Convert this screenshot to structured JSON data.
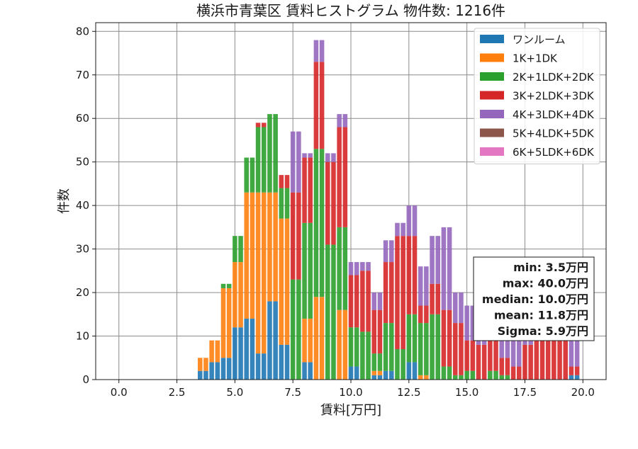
{
  "chart_data": {
    "type": "bar",
    "stacked": true,
    "title": "横浜市青葉区 賃料ヒストグラム  物件数: 1216件",
    "xlabel": "賃料[万円]",
    "ylabel": "件数",
    "xlim": [
      -1.0,
      21.0
    ],
    "ylim": [
      0,
      82
    ],
    "xticks": [
      0.0,
      2.5,
      5.0,
      7.5,
      10.0,
      12.5,
      15.0,
      17.5,
      20.0
    ],
    "xtick_labels": [
      "0.0",
      "2.5",
      "5.0",
      "7.5",
      "10.0",
      "12.5",
      "15.0",
      "17.5",
      "20.0"
    ],
    "yticks": [
      0,
      10,
      20,
      30,
      40,
      50,
      60,
      70,
      80
    ],
    "ytick_labels": [
      "0",
      "10",
      "20",
      "30",
      "40",
      "50",
      "60",
      "70",
      "80"
    ],
    "grid": true,
    "legend_position": "top-right",
    "bin_width": 0.25,
    "x": [
      3.5,
      3.75,
      4.0,
      4.25,
      4.5,
      4.75,
      5.0,
      5.25,
      5.5,
      5.75,
      6.0,
      6.25,
      6.5,
      6.75,
      7.0,
      7.25,
      7.5,
      7.75,
      8.0,
      8.25,
      8.5,
      8.75,
      9.0,
      9.25,
      9.5,
      9.75,
      10.0,
      10.25,
      10.5,
      10.75,
      11.0,
      11.25,
      11.5,
      11.75,
      12.0,
      12.25,
      12.5,
      12.75,
      13.0,
      13.25,
      13.5,
      13.75,
      14.0,
      14.25,
      14.5,
      14.75,
      15.0,
      15.25,
      15.5,
      15.75,
      16.0,
      16.25,
      16.5,
      16.75,
      17.0,
      17.25,
      17.5,
      17.75,
      18.0,
      18.25,
      18.5,
      18.75,
      19.0,
      19.25,
      19.5,
      19.75
    ],
    "series": [
      {
        "name": "ワンルーム",
        "color": "#1f77b4",
        "values": [
          2,
          2,
          4,
          4,
          5,
          5,
          12,
          12,
          14,
          14,
          6,
          6,
          18,
          18,
          8,
          8,
          0,
          0,
          4,
          4,
          0,
          0,
          0,
          0,
          0,
          0,
          3,
          3,
          0,
          0,
          1,
          1,
          2,
          2,
          0,
          0,
          4,
          4,
          0,
          0,
          0,
          0,
          0,
          0,
          0,
          0,
          0,
          0,
          0,
          0,
          0,
          0,
          0,
          0,
          0,
          0,
          0,
          0,
          0,
          0,
          0,
          0,
          0,
          0,
          1,
          1
        ]
      },
      {
        "name": "1K+1DK",
        "color": "#ff7f0e",
        "values": [
          3,
          3,
          5,
          5,
          16,
          16,
          15,
          15,
          29,
          29,
          37,
          37,
          25,
          25,
          29,
          29,
          0,
          0,
          10,
          10,
          19,
          19,
          0,
          0,
          16,
          16,
          0,
          0,
          0,
          0,
          1,
          1,
          0,
          0,
          0,
          0,
          0,
          0,
          1,
          1,
          0,
          0,
          0,
          0,
          0,
          0,
          0,
          0,
          0,
          0,
          0,
          0,
          0,
          0,
          0,
          0,
          0,
          0,
          0,
          0,
          0,
          0,
          0,
          0,
          0,
          0
        ]
      },
      {
        "name": "2K+1LDK+2DK",
        "color": "#2ca02c",
        "values": [
          0,
          0,
          0,
          0,
          1,
          1,
          6,
          6,
          8,
          8,
          15,
          15,
          18,
          18,
          7,
          7,
          23,
          23,
          22,
          22,
          34,
          34,
          31,
          31,
          19,
          19,
          9,
          9,
          11,
          11,
          4,
          4,
          11,
          11,
          7,
          7,
          11,
          11,
          12,
          12,
          15,
          15,
          3,
          3,
          1,
          1,
          2,
          2,
          0,
          0,
          2,
          2,
          1,
          1,
          0,
          0,
          0,
          0,
          0,
          0,
          0,
          0,
          0,
          0,
          0,
          0
        ]
      },
      {
        "name": "3K+2LDK+3DK",
        "color": "#d62728",
        "values": [
          0,
          0,
          0,
          0,
          0,
          0,
          0,
          0,
          0,
          0,
          1,
          1,
          0,
          0,
          3,
          3,
          20,
          20,
          15,
          15,
          20,
          20,
          19,
          19,
          23,
          23,
          12,
          12,
          14,
          14,
          10,
          10,
          14,
          14,
          26,
          26,
          18,
          18,
          4,
          4,
          7,
          7,
          13,
          13,
          12,
          12,
          7,
          7,
          8,
          8,
          10,
          10,
          4,
          4,
          3,
          3,
          8,
          8,
          11,
          11,
          14,
          14,
          18,
          18,
          2,
          2
        ]
      },
      {
        "name": "4K+3LDK+4DK",
        "color": "#9467bd",
        "values": [
          0,
          0,
          0,
          0,
          0,
          0,
          0,
          0,
          0,
          0,
          0,
          0,
          0,
          0,
          0,
          0,
          14,
          14,
          1,
          1,
          5,
          5,
          2,
          2,
          3,
          3,
          3,
          3,
          2,
          2,
          4,
          4,
          5,
          5,
          3,
          3,
          7,
          7,
          9,
          9,
          11,
          11,
          19,
          19,
          7,
          7,
          8,
          8,
          7,
          7,
          6,
          6,
          13,
          13,
          7,
          7,
          2,
          2,
          5,
          5,
          3,
          3,
          4,
          4,
          6,
          6
        ]
      },
      {
        "name": "5K+4LDK+5DK",
        "color": "#8c564b",
        "values": [
          0,
          0,
          0,
          0,
          0,
          0,
          0,
          0,
          0,
          0,
          0,
          0,
          0,
          0,
          0,
          0,
          0,
          0,
          0,
          0,
          0,
          0,
          0,
          0,
          0,
          0,
          0,
          0,
          0,
          0,
          0,
          0,
          0,
          0,
          0,
          0,
          0,
          0,
          0,
          0,
          0,
          0,
          0,
          0,
          0,
          0,
          0,
          0,
          0,
          0,
          0,
          0,
          0,
          0,
          0,
          0,
          0,
          0,
          0,
          0,
          0,
          0,
          0,
          0,
          0,
          0
        ]
      },
      {
        "name": "6K+5LDK+6DK",
        "color": "#e377c2",
        "values": [
          0,
          0,
          0,
          0,
          0,
          0,
          0,
          0,
          0,
          0,
          0,
          0,
          0,
          0,
          0,
          0,
          0,
          0,
          0,
          0,
          0,
          0,
          0,
          0,
          0,
          0,
          0,
          0,
          0,
          0,
          0,
          0,
          0,
          0,
          0,
          0,
          0,
          0,
          0,
          0,
          0,
          0,
          0,
          0,
          0,
          0,
          0,
          0,
          0,
          0,
          0,
          0,
          0,
          0,
          0,
          0,
          0,
          0,
          0,
          0,
          0,
          0,
          0,
          0,
          0,
          0
        ]
      }
    ],
    "stats": [
      "min: 3.5万円",
      "max: 40.0万円",
      "median: 10.0万円",
      "mean: 11.8万円",
      "Sigma: 5.9万円"
    ]
  }
}
